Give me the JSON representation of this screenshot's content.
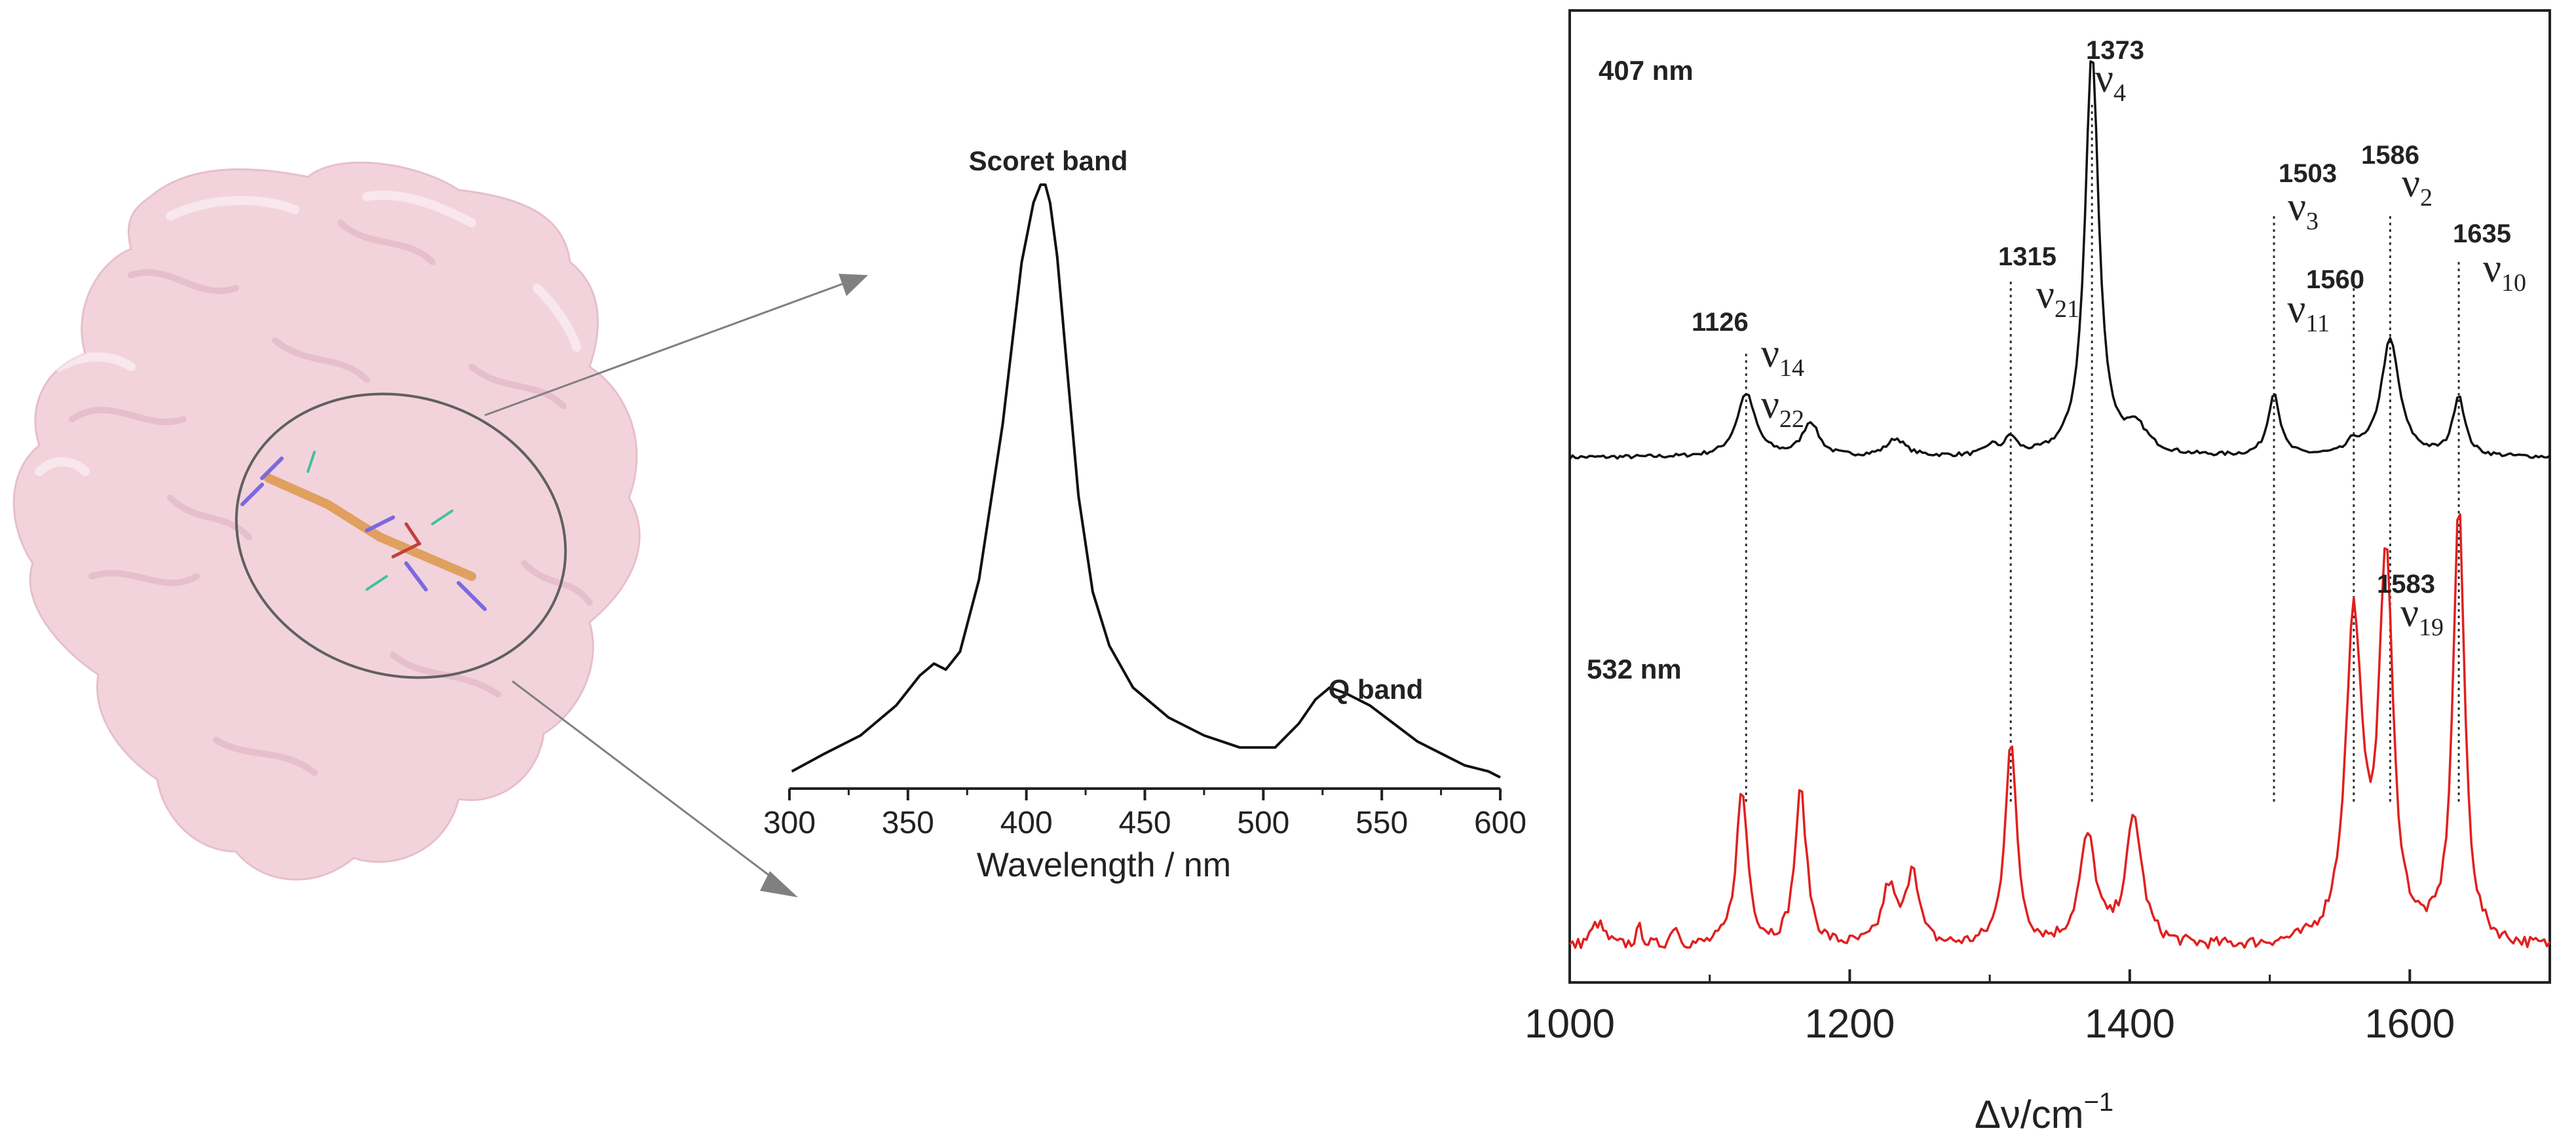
{
  "colors": {
    "protein_surface": "#f2d3dc",
    "protein_shade": "#e3b6c4",
    "black_trace": "#111111",
    "red_trace": "#e02020",
    "arrow": "#808080"
  },
  "protein_panel": {
    "icon": "protein-surface-image",
    "ligand_icon": "heme-ligand-sticks"
  },
  "chart_data": [
    {
      "type": "line",
      "name": "absorption",
      "title": "",
      "xlabel": "Wavelength / nm",
      "ylabel": "",
      "xlim": [
        300,
        600
      ],
      "ylim": [
        0,
        1
      ],
      "xticks": [
        300,
        350,
        400,
        450,
        500,
        550,
        600
      ],
      "grid": false,
      "annotations": [
        {
          "label": "Scoret band",
          "x": 408,
          "y": 1.0
        },
        {
          "label": "Q band",
          "x": 528,
          "y": 0.19
        }
      ],
      "series": [
        {
          "name": "absorbance",
          "x": [
            301,
            315,
            330,
            345,
            355,
            361,
            366,
            372,
            380,
            390,
            398,
            403,
            406,
            408,
            410,
            413,
            417,
            422,
            428,
            435,
            445,
            460,
            475,
            490,
            505,
            515,
            522,
            528,
            535,
            545,
            555,
            565,
            575,
            585,
            595,
            600
          ],
          "y": [
            0.02,
            0.05,
            0.08,
            0.13,
            0.18,
            0.2,
            0.19,
            0.22,
            0.34,
            0.6,
            0.87,
            0.97,
            1.0,
            1.0,
            0.97,
            0.88,
            0.7,
            0.48,
            0.32,
            0.23,
            0.16,
            0.11,
            0.08,
            0.06,
            0.06,
            0.1,
            0.14,
            0.16,
            0.15,
            0.13,
            0.1,
            0.07,
            0.05,
            0.03,
            0.02,
            0.01
          ]
        }
      ]
    },
    {
      "type": "line",
      "name": "raman",
      "title": "",
      "xlabel": "Δν/cm",
      "xlabel_superscript": "−1",
      "ylabel": "",
      "xlim": [
        1000,
        1700
      ],
      "ylim": [
        0,
        1
      ],
      "xticks": [
        1000,
        1200,
        1400,
        1600
      ],
      "grid": false,
      "series": [
        {
          "name": "407 nm",
          "label": "407 nm",
          "baseline": 0.54,
          "peaks": [
            {
              "x": 1126,
              "h": 0.065,
              "w": 8
            },
            {
              "x": 1172,
              "h": 0.035,
              "w": 7
            },
            {
              "x": 1233,
              "h": 0.018,
              "w": 8
            },
            {
              "x": 1301,
              "h": 0.01,
              "w": 5
            },
            {
              "x": 1315,
              "h": 0.018,
              "w": 5
            },
            {
              "x": 1373,
              "h": 0.415,
              "w": 6
            },
            {
              "x": 1405,
              "h": 0.025,
              "w": 10
            },
            {
              "x": 1503,
              "h": 0.065,
              "w": 5
            },
            {
              "x": 1560,
              "h": 0.012,
              "w": 5
            },
            {
              "x": 1586,
              "h": 0.12,
              "w": 8
            },
            {
              "x": 1635,
              "h": 0.062,
              "w": 5
            }
          ]
        },
        {
          "name": "532 nm",
          "label": "532 nm",
          "baseline": 0.035,
          "peaks": [
            {
              "x": 1020,
              "h": 0.025,
              "w": 6
            },
            {
              "x": 1050,
              "h": 0.018,
              "w": 3
            },
            {
              "x": 1075,
              "h": 0.022,
              "w": 3
            },
            {
              "x": 1123,
              "h": 0.16,
              "w": 5
            },
            {
              "x": 1165,
              "h": 0.16,
              "w": 5
            },
            {
              "x": 1228,
              "h": 0.06,
              "w": 6
            },
            {
              "x": 1245,
              "h": 0.08,
              "w": 5
            },
            {
              "x": 1315,
              "h": 0.21,
              "w": 5
            },
            {
              "x": 1370,
              "h": 0.11,
              "w": 7
            },
            {
              "x": 1403,
              "h": 0.13,
              "w": 7
            },
            {
              "x": 1560,
              "h": 0.33,
              "w": 7
            },
            {
              "x": 1583,
              "h": 0.39,
              "w": 6
            },
            {
              "x": 1635,
              "h": 0.45,
              "w": 5
            }
          ]
        }
      ],
      "mode_labels": [
        {
          "wavenumber": "1126",
          "modes": [
            "14",
            "22"
          ],
          "x": 1126
        },
        {
          "wavenumber": "1315",
          "modes": [
            "21"
          ],
          "x": 1315
        },
        {
          "wavenumber": "1373",
          "modes": [
            "4"
          ],
          "x": 1373
        },
        {
          "wavenumber": "1503",
          "modes": [
            "3"
          ],
          "x": 1503
        },
        {
          "wavenumber": "1560",
          "modes": [
            "11"
          ],
          "x": 1560
        },
        {
          "wavenumber": "1586",
          "modes": [
            "2"
          ],
          "x": 1586
        },
        {
          "wavenumber": "1635",
          "modes": [
            "10"
          ],
          "x": 1635
        },
        {
          "wavenumber": "1583",
          "modes": [
            "19"
          ],
          "x": 1583
        }
      ],
      "dotted_lines_at": [
        1126,
        1315,
        1373,
        1503,
        1560,
        1586,
        1635
      ]
    }
  ]
}
